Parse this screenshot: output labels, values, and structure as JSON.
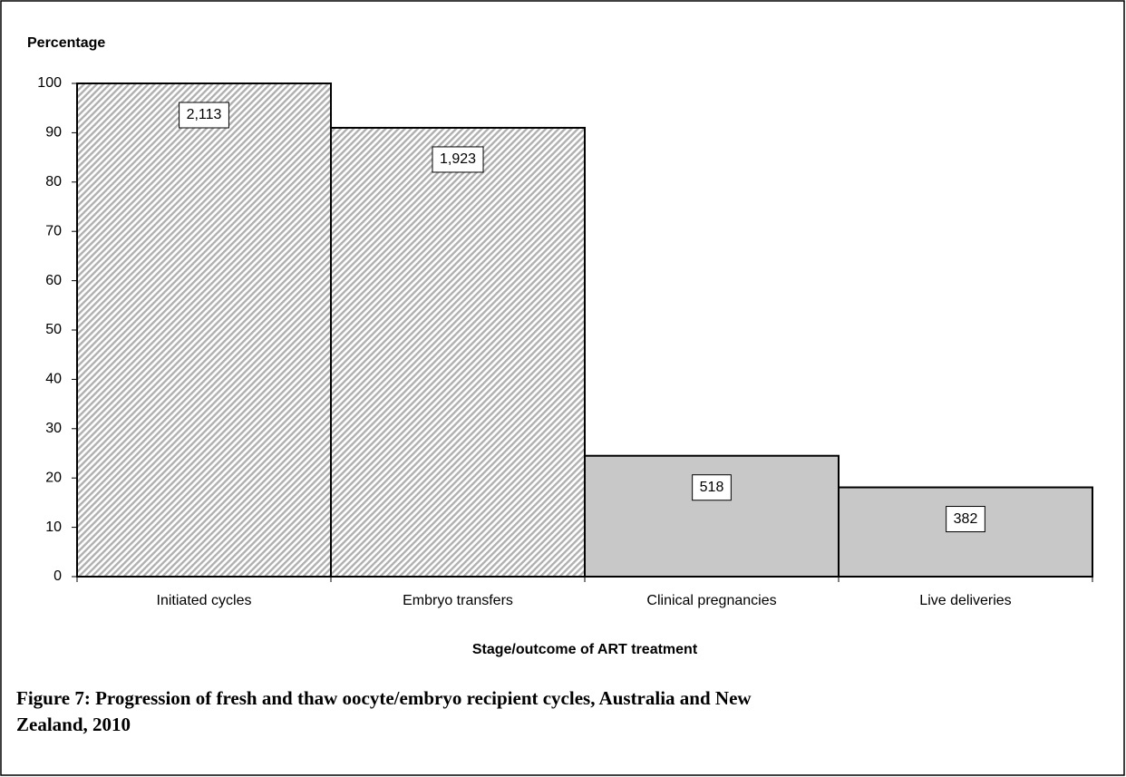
{
  "chart_data": {
    "type": "bar",
    "y_axis_title": "Percentage",
    "x_axis_title": "Stage/outcome of ART treatment",
    "caption": [
      "Figure 7: Progression of fresh and thaw oocyte/embryo recipient cycles, Australia and New",
      "Zealand, 2010"
    ],
    "categories": [
      "Initiated cycles",
      "Embryo transfers",
      "Clinical pregnancies",
      "Live deliveries"
    ],
    "values": [
      100,
      91,
      24.5,
      18.1
    ],
    "counts": [
      "2,113",
      "1,923",
      "518",
      "382"
    ],
    "bar_styles": [
      "hatched",
      "hatched",
      "solid",
      "solid"
    ],
    "color": "#c8c8c8",
    "ylim": [
      0,
      100
    ],
    "yticks": [
      0,
      10,
      20,
      30,
      40,
      50,
      60,
      70,
      80,
      90,
      100
    ]
  }
}
